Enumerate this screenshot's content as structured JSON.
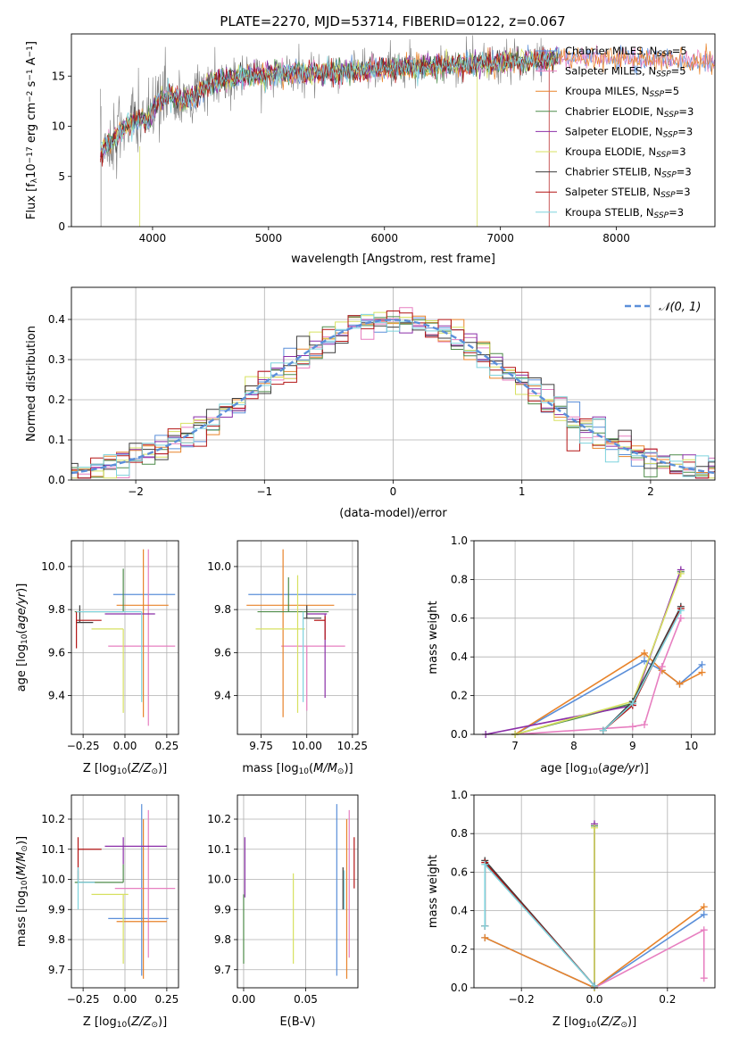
{
  "title": "PLATE=2270, MJD=53714, FIBERID=0122, z=0.067",
  "colors": {
    "Chabrier MILES": "#5b8fd9",
    "Salpeter MILES": "#e77fc0",
    "Kroupa MILES": "#e8832a",
    "Chabrier ELODIE": "#4e8c4a",
    "Salpeter ELODIE": "#8b2fa8",
    "Kroupa ELODIE": "#d7e160",
    "Chabrier STELIB": "#3d3d3d",
    "Salpeter STELIB": "#b31414",
    "Kroupa STELIB": "#7dd3dd",
    "data": "#808080"
  },
  "chart_data": [
    {
      "id": "spectrum",
      "type": "line",
      "title": "PLATE=2270, MJD=53714, FIBERID=0122, z=0.067",
      "xlabel": "wavelength [Angstrom, rest frame]",
      "ylabel": "Flux [f_λ10^-17 erg cm^-2 s^-1 A^-1]",
      "xlim": [
        3300,
        8850
      ],
      "ylim": [
        0,
        19.2
      ],
      "xticks": [
        4000,
        5000,
        6000,
        7000,
        8000
      ],
      "yticks": [
        0,
        5,
        10,
        15
      ],
      "grid": false,
      "legend_position": "top-right",
      "legend": [
        {
          "base": "Chabrier MILES, N",
          "sub": "SSP",
          "tail": "=5"
        },
        {
          "base": "Salpeter MILES, N",
          "sub": "SSP",
          "tail": "=5"
        },
        {
          "base": "Kroupa MILES, N",
          "sub": "SSP",
          "tail": "=5"
        },
        {
          "base": "Chabrier ELODIE, N",
          "sub": "SSP",
          "tail": "=3"
        },
        {
          "base": "Salpeter ELODIE, N",
          "sub": "SSP",
          "tail": "=3"
        },
        {
          "base": "Kroupa ELODIE, N",
          "sub": "SSP",
          "tail": "=3"
        },
        {
          "base": "Chabrier STELIB, N",
          "sub": "SSP",
          "tail": "=3"
        },
        {
          "base": "Salpeter STELIB, N",
          "sub": "SSP",
          "tail": "=3"
        },
        {
          "base": "Kroupa STELIB, N",
          "sub": "SSP",
          "tail": "=3"
        }
      ],
      "continuum": {
        "x": [
          3550,
          3650,
          3750,
          3850,
          3950,
          4050,
          4150,
          4250,
          4350,
          4450,
          4600,
          4800,
          5000,
          5200,
          5500,
          5800,
          6100,
          6400,
          6700,
          7000,
          7300,
          7500,
          7700,
          8000,
          8300,
          8500,
          8850
        ],
        "y": [
          7.5,
          8.5,
          9.8,
          10.5,
          10.6,
          12.5,
          13.0,
          12.6,
          12.8,
          14.0,
          14.5,
          15.0,
          15.2,
          15.3,
          15.4,
          15.6,
          15.8,
          16.0,
          16.1,
          16.3,
          16.5,
          16.7,
          16.8,
          16.8,
          16.6,
          16.5,
          16.4
        ]
      }
    },
    {
      "id": "residuals",
      "type": "line",
      "xlabel": "(data-model)/error",
      "ylabel": "Normed distribution",
      "xlim": [
        -2.5,
        2.5
      ],
      "ylim": [
        0,
        0.48
      ],
      "xticks": [
        -2,
        -1,
        0,
        1,
        2
      ],
      "xticklabels": [
        "−2",
        "−1",
        "0",
        "1",
        "2"
      ],
      "yticks": [
        0.0,
        0.1,
        0.2,
        0.3,
        0.4
      ],
      "yticklabels": [
        "0.0",
        "0.1",
        "0.2",
        "0.3",
        "0.4"
      ],
      "grid": true,
      "legend_position": "top-right",
      "legend_label": "𝒩(0, 1)",
      "bin_width": 0.1,
      "reference_curve": "standard normal N(0,1)"
    },
    {
      "id": "age-vs-Z",
      "type": "scatter",
      "xlabel": "Z [log10(Z/Z⊙)]",
      "ylabel": "age [log10(age/yr)]",
      "xlim": [
        -0.32,
        0.32
      ],
      "ylim": [
        9.22,
        10.12
      ],
      "xticks": [
        -0.25,
        0.0,
        0.25
      ],
      "xticklabels": [
        "−0.25",
        "0.00",
        "0.25"
      ],
      "yticks": [
        9.4,
        9.6,
        9.8,
        10.0
      ],
      "yticklabels": [
        "9.4",
        "9.6",
        "9.8",
        "10.0"
      ],
      "grid": true,
      "points": [
        {
          "model": "Chabrier MILES",
          "x": 0.1,
          "y": 9.87,
          "ex": [
            -0.07,
            0.3
          ],
          "ey": [
            9.87,
            9.87
          ]
        },
        {
          "model": "Salpeter MILES",
          "x": 0.14,
          "y": 9.63,
          "ex": [
            -0.1,
            0.3
          ],
          "ey": [
            9.26,
            10.08
          ]
        },
        {
          "model": "Kroupa MILES",
          "x": 0.11,
          "y": 9.82,
          "ex": [
            -0.05,
            0.26
          ],
          "ey": [
            9.3,
            10.08
          ]
        },
        {
          "model": "Chabrier ELODIE",
          "x": -0.01,
          "y": 9.79,
          "ex": [
            -0.3,
            -0.01
          ],
          "ey": [
            9.79,
            9.99
          ]
        },
        {
          "model": "Salpeter ELODIE",
          "x": 0.03,
          "y": 9.78,
          "ex": [
            -0.12,
            0.18
          ],
          "ey": [
            9.78,
            9.78
          ]
        },
        {
          "model": "Kroupa ELODIE",
          "x": -0.01,
          "y": 9.71,
          "ex": [
            -0.2,
            -0.01
          ],
          "ey": [
            9.32,
            9.71
          ]
        },
        {
          "model": "Chabrier STELIB",
          "x": -0.27,
          "y": 9.74,
          "ex": [
            -0.29,
            -0.19
          ],
          "ey": [
            9.74,
            9.82
          ]
        },
        {
          "model": "Salpeter STELIB",
          "x": -0.29,
          "y": 9.75,
          "ex": [
            -0.29,
            -0.14
          ],
          "ey": [
            9.62,
            9.79
          ]
        },
        {
          "model": "Kroupa STELIB",
          "x": 0.1,
          "y": 9.79,
          "ex": [
            -0.29,
            0.1
          ],
          "ey": [
            9.37,
            9.79
          ]
        }
      ]
    },
    {
      "id": "age-vs-mass",
      "type": "scatter",
      "xlabel": "mass [log10(M/M⊙)]",
      "ylabel": "",
      "xlim": [
        9.62,
        10.28
      ],
      "ylim": [
        9.22,
        10.12
      ],
      "xticks": [
        9.75,
        10.0,
        10.25
      ],
      "xticklabels": [
        "9.75",
        "10.00",
        "10.25"
      ],
      "yticks": [
        9.4,
        9.6,
        9.8,
        10.0
      ],
      "yticklabels": [
        "9.4",
        "9.6",
        "9.8",
        "10.0"
      ],
      "grid": true,
      "points": [
        {
          "model": "Chabrier MILES",
          "x": 9.87,
          "y": 9.87,
          "ex": [
            9.68,
            10.27
          ],
          "ey": [
            9.87,
            9.87
          ]
        },
        {
          "model": "Salpeter MILES",
          "x": 10.0,
          "y": 9.63,
          "ex": [
            9.86,
            10.21
          ],
          "ey": [
            9.33,
            9.63
          ]
        },
        {
          "model": "Kroupa MILES",
          "x": 9.87,
          "y": 9.82,
          "ex": [
            9.67,
            10.15
          ],
          "ey": [
            9.3,
            10.08
          ]
        },
        {
          "model": "Chabrier ELODIE",
          "x": 9.9,
          "y": 9.79,
          "ex": [
            9.73,
            10.12
          ],
          "ey": [
            9.79,
            9.95
          ]
        },
        {
          "model": "Salpeter ELODIE",
          "x": 10.1,
          "y": 9.78,
          "ex": [
            10.0,
            10.11
          ],
          "ey": [
            9.39,
            9.78
          ]
        },
        {
          "model": "Kroupa ELODIE",
          "x": 9.95,
          "y": 9.71,
          "ex": [
            9.72,
            9.99
          ],
          "ey": [
            9.32,
            9.96
          ]
        },
        {
          "model": "Chabrier STELIB",
          "x": 10.0,
          "y": 9.76,
          "ex": [
            9.98,
            10.08
          ],
          "ey": [
            9.76,
            9.82
          ]
        },
        {
          "model": "Salpeter STELIB",
          "x": 10.1,
          "y": 9.75,
          "ex": [
            10.04,
            10.1
          ],
          "ey": [
            9.66,
            9.77
          ]
        },
        {
          "model": "Kroupa STELIB",
          "x": 9.98,
          "y": 9.79,
          "ex": [
            9.98,
            9.98
          ],
          "ey": [
            9.37,
            9.79
          ]
        }
      ]
    },
    {
      "id": "weight-vs-age",
      "type": "line",
      "xlabel": "age [log10(age/yr)]",
      "ylabel": "mass weight",
      "xlim": [
        6.3,
        10.4
      ],
      "ylim": [
        0.0,
        1.0
      ],
      "xticks": [
        7,
        8,
        9,
        10
      ],
      "xticklabels": [
        "7",
        "8",
        "9",
        "10"
      ],
      "yticks": [
        0.0,
        0.2,
        0.4,
        0.6,
        0.8,
        1.0
      ],
      "yticklabels": [
        "0.0",
        "0.2",
        "0.4",
        "0.6",
        "0.8",
        "1.0"
      ],
      "grid": true,
      "series": [
        {
          "model": "Chabrier MILES",
          "x": [
            7.0,
            9.2,
            9.5,
            9.8,
            10.18
          ],
          "y": [
            0.0,
            0.38,
            0.33,
            0.26,
            0.36
          ]
        },
        {
          "model": "Kroupa MILES",
          "x": [
            7.0,
            9.2,
            9.5,
            9.8,
            10.18
          ],
          "y": [
            0.0,
            0.42,
            0.33,
            0.26,
            0.32
          ]
        },
        {
          "model": "Salpeter MILES",
          "x": [
            7.0,
            9.0,
            9.2,
            9.5,
            9.82
          ],
          "y": [
            0.0,
            0.04,
            0.05,
            0.35,
            0.6
          ]
        },
        {
          "model": "Chabrier ELODIE",
          "x": [
            7.0,
            9.0,
            9.82
          ],
          "y": [
            0.0,
            0.16,
            0.84
          ]
        },
        {
          "model": "Salpeter ELODIE",
          "x": [
            6.5,
            9.0,
            9.82
          ],
          "y": [
            0.0,
            0.15,
            0.85
          ]
        },
        {
          "model": "Kroupa ELODIE",
          "x": [
            7.0,
            9.0,
            9.82
          ],
          "y": [
            0.0,
            0.17,
            0.83
          ]
        },
        {
          "model": "Chabrier STELIB",
          "x": [
            8.5,
            9.0,
            9.82
          ],
          "y": [
            0.02,
            0.17,
            0.66
          ]
        },
        {
          "model": "Salpeter STELIB",
          "x": [
            8.5,
            9.0,
            9.82
          ],
          "y": [
            0.02,
            0.15,
            0.65
          ]
        },
        {
          "model": "Kroupa STELIB",
          "x": [
            8.5,
            9.0,
            9.82
          ],
          "y": [
            0.02,
            0.16,
            0.64
          ]
        }
      ]
    },
    {
      "id": "mass-vs-Z",
      "type": "scatter",
      "xlabel": "Z [log10(Z/Z⊙)]",
      "ylabel": "mass [log10(M/M⊙)]",
      "xlim": [
        -0.32,
        0.32
      ],
      "ylim": [
        9.64,
        10.28
      ],
      "xticks": [
        -0.25,
        0.0,
        0.25
      ],
      "xticklabels": [
        "−0.25",
        "0.00",
        "0.25"
      ],
      "yticks": [
        9.7,
        9.8,
        9.9,
        10.0,
        10.1,
        10.2
      ],
      "yticklabels": [
        "9.7",
        "9.8",
        "9.9",
        "10.0",
        "10.1",
        "10.2"
      ],
      "grid": true,
      "points": [
        {
          "model": "Chabrier MILES",
          "x": 0.1,
          "y": 9.87,
          "ex": [
            -0.1,
            0.26
          ],
          "ey": [
            9.68,
            10.25
          ]
        },
        {
          "model": "Salpeter MILES",
          "x": 0.14,
          "y": 9.97,
          "ex": [
            -0.06,
            0.3
          ],
          "ey": [
            9.74,
            10.23
          ]
        },
        {
          "model": "Kroupa MILES",
          "x": 0.11,
          "y": 9.86,
          "ex": [
            -0.05,
            0.25
          ],
          "ey": [
            9.67,
            10.2
          ]
        },
        {
          "model": "Chabrier ELODIE",
          "x": -0.01,
          "y": 9.99,
          "ex": [
            -0.3,
            -0.01
          ],
          "ey": [
            9.99,
            10.05
          ]
        },
        {
          "model": "Salpeter ELODIE",
          "x": -0.01,
          "y": 10.11,
          "ex": [
            -0.12,
            0.25
          ],
          "ey": [
            10.05,
            10.14
          ]
        },
        {
          "model": "Kroupa ELODIE",
          "x": -0.01,
          "y": 9.95,
          "ex": [
            -0.2,
            0.02
          ],
          "ey": [
            9.72,
            9.95
          ]
        },
        {
          "model": "Chabrier STELIB",
          "x": -0.28,
          "y": 9.99,
          "ex": [
            -0.28,
            -0.18
          ],
          "ey": [
            9.99,
            10.03
          ]
        },
        {
          "model": "Salpeter STELIB",
          "x": -0.28,
          "y": 10.1,
          "ex": [
            -0.28,
            -0.14
          ],
          "ey": [
            10.0,
            10.14
          ]
        },
        {
          "model": "Kroupa STELIB",
          "x": -0.28,
          "y": 9.99,
          "ex": [
            -0.28,
            -0.18
          ],
          "ey": [
            9.9,
            10.04
          ]
        }
      ]
    },
    {
      "id": "mass-vs-EBV",
      "type": "scatter",
      "xlabel": "E(B-V)",
      "ylabel": "",
      "xlim": [
        -0.005,
        0.092
      ],
      "ylim": [
        9.64,
        10.28
      ],
      "xticks": [
        0.0,
        0.05
      ],
      "xticklabels": [
        "0.00",
        "0.05"
      ],
      "yticks": [
        9.7,
        9.8,
        9.9,
        10.0,
        10.1,
        10.2
      ],
      "yticklabels": [
        "9.7",
        "9.8",
        "9.9",
        "10.0",
        "10.1",
        "10.2"
      ],
      "grid": true,
      "points": [
        {
          "model": "Chabrier MILES",
          "x": 0.075,
          "y": 9.9,
          "ex": [
            0.075,
            0.075
          ],
          "ey": [
            9.68,
            10.25
          ]
        },
        {
          "model": "Salpeter MILES",
          "x": 0.085,
          "y": 9.97,
          "ex": [
            0.085,
            0.085
          ],
          "ey": [
            9.74,
            10.23
          ]
        },
        {
          "model": "Kroupa MILES",
          "x": 0.083,
          "y": 9.9,
          "ex": [
            0.083,
            0.083
          ],
          "ey": [
            9.67,
            10.2
          ]
        },
        {
          "model": "Chabrier ELODIE",
          "x": 0.0,
          "y": 9.9,
          "ex": [
            0.0,
            0.0
          ],
          "ey": [
            9.72,
            9.95
          ]
        },
        {
          "model": "Salpeter ELODIE",
          "x": 0.001,
          "y": 10.05,
          "ex": [
            0.001,
            0.001
          ],
          "ey": [
            9.94,
            10.14
          ]
        },
        {
          "model": "Kroupa ELODIE",
          "x": 0.04,
          "y": 9.9,
          "ex": [
            0.04,
            0.04
          ],
          "ey": [
            9.72,
            10.02
          ]
        },
        {
          "model": "Chabrier STELIB",
          "x": 0.08,
          "y": 9.95,
          "ex": [
            0.08,
            0.08
          ],
          "ey": [
            9.9,
            10.04
          ]
        },
        {
          "model": "Salpeter STELIB",
          "x": 0.089,
          "y": 10.05,
          "ex": [
            0.089,
            0.089
          ],
          "ey": [
            9.97,
            10.14
          ]
        },
        {
          "model": "Kroupa STELIB",
          "x": 0.081,
          "y": 9.95,
          "ex": [
            0.081,
            0.081
          ],
          "ey": [
            9.9,
            10.03
          ]
        }
      ]
    },
    {
      "id": "weight-vs-Z",
      "type": "line",
      "xlabel": "Z [log10(Z/Z⊙)]",
      "ylabel": "mass weight",
      "xlim": [
        -0.33,
        0.33
      ],
      "ylim": [
        0.0,
        1.0
      ],
      "xticks": [
        -0.2,
        0.0,
        0.2
      ],
      "xticklabels": [
        "−0.2",
        "0.0",
        "0.2"
      ],
      "yticks": [
        0.0,
        0.2,
        0.4,
        0.6,
        0.8,
        1.0
      ],
      "yticklabels": [
        "0.0",
        "0.2",
        "0.4",
        "0.6",
        "0.8",
        "1.0"
      ],
      "grid": true,
      "series": [
        {
          "model": "Chabrier MILES",
          "x": [
            -0.3,
            0.0,
            0.3
          ],
          "y": [
            0.26,
            0.0,
            0.38
          ]
        },
        {
          "model": "Kroupa MILES",
          "x": [
            -0.3,
            0.0,
            0.3
          ],
          "y": [
            0.26,
            0.0,
            0.42
          ]
        },
        {
          "model": "Salpeter MILES",
          "x": [
            0.0,
            0.3,
            0.3
          ],
          "y": [
            0.0,
            0.3,
            0.05
          ]
        },
        {
          "model": "Chabrier ELODIE",
          "x": [
            0.0,
            0.0
          ],
          "y": [
            0.0,
            0.84
          ]
        },
        {
          "model": "Salpeter ELODIE",
          "x": [
            0.0,
            0.0
          ],
          "y": [
            0.0,
            0.85
          ]
        },
        {
          "model": "Kroupa ELODIE",
          "x": [
            0.0,
            0.0
          ],
          "y": [
            0.0,
            0.83
          ]
        },
        {
          "model": "Chabrier STELIB",
          "x": [
            -0.3,
            -0.3,
            0.0
          ],
          "y": [
            0.32,
            0.66,
            0.01
          ]
        },
        {
          "model": "Salpeter STELIB",
          "x": [
            -0.3,
            -0.3,
            0.0
          ],
          "y": [
            0.32,
            0.65,
            0.01
          ]
        },
        {
          "model": "Kroupa STELIB",
          "x": [
            -0.3,
            -0.3,
            0.0
          ],
          "y": [
            0.32,
            0.64,
            0.01
          ]
        }
      ]
    }
  ]
}
